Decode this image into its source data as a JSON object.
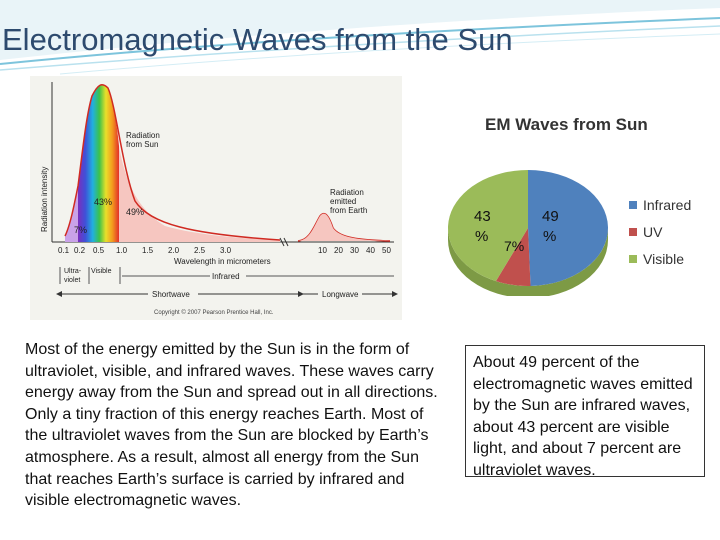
{
  "slide": {
    "title": "Electromagnetic Waves from the Sun"
  },
  "spectrum_figure": {
    "y_axis_label": "Radiation intensity",
    "sun_label_line1": "Radiation",
    "sun_label_line2": "from Sun",
    "earth_label_line1": "Radiation",
    "earth_label_line2": "emitted",
    "earth_label_line3": "from Earth",
    "pct_visible": "43%",
    "pct_infrared": "49%",
    "pct_uv": "7%",
    "ticks": [
      "0.1",
      "0.2",
      "0.5",
      "1.0",
      "1.5",
      "2.0",
      "2.5",
      "3.0",
      "10",
      "20",
      "30",
      "40",
      "50"
    ],
    "x_axis_label": "Wavelength in micrometers",
    "band_ultraviolet_1": "Ultra-",
    "band_ultraviolet_2": "violet",
    "band_visible": "Visible",
    "band_infrared": "Infrared",
    "shortwave": "Shortwave",
    "longwave": "Longwave",
    "copyright": "Copyright © 2007 Pearson Prentice Hall, Inc."
  },
  "pie_figure": {
    "title": "EM Waves from Sun",
    "label_visible_top": "43",
    "label_visible_bottom": "%",
    "label_infrared_top": "49",
    "label_infrared_bottom": "%",
    "label_uv": "7%",
    "legend": [
      {
        "label": "Infrared",
        "color": "#4f81bd"
      },
      {
        "label": "UV",
        "color": "#c0504d"
      },
      {
        "label": "Visible",
        "color": "#9bbb59"
      }
    ]
  },
  "chart_data": {
    "type": "pie",
    "title": "EM Waves from Sun",
    "categories": [
      "Infrared",
      "UV",
      "Visible"
    ],
    "values": [
      49,
      7,
      43
    ],
    "legend_position": "right"
  },
  "text_left": "Most of the energy emitted by the Sun is in the form of ultraviolet, visible, and infrared waves. These waves carry energy away from the Sun and spread out in all directions. Only a tiny fraction of this energy reaches Earth. Most of the ultraviolet waves from the Sun are blocked by Earth’s atmosphere. As a result, almost all energy from the Sun that reaches Earth’s surface is carried by infrared and visible electromagnetic waves.",
  "text_right": "About 49 percent of the electromagnetic waves emitted by the Sun are infrared waves, about 43 percent are visible light, and about 7 percent are ultraviolet waves."
}
